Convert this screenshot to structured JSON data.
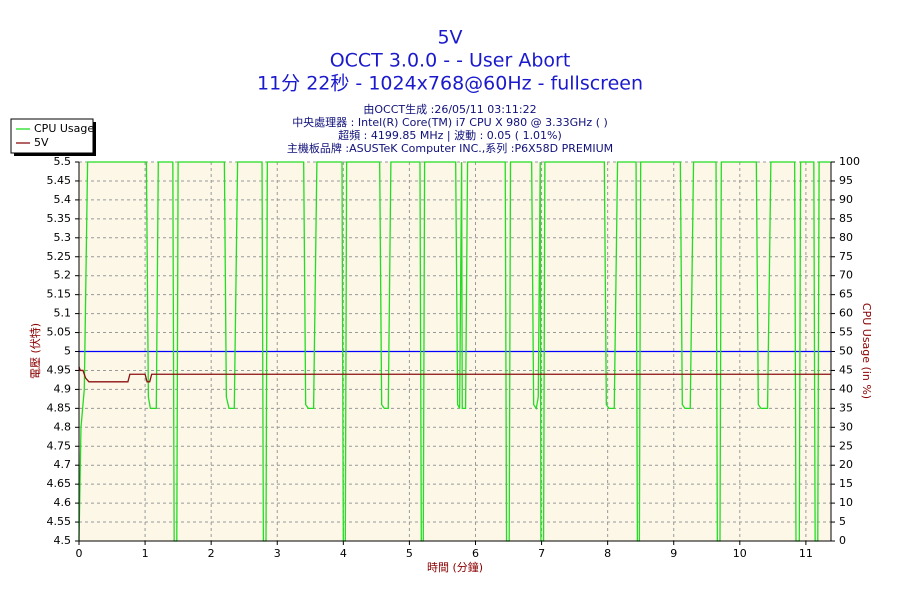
{
  "chart_data": {
    "type": "line",
    "title": "5V",
    "subtitle": [
      "OCCT 3.0.0 -  - User Abort",
      "11分 22秒 - 1024x768@60Hz - fullscreen"
    ],
    "info": [
      "由OCCT生成 :26/05/11 03:11:22",
      "中央處理器 : Intel(R) Core(TM) i7 CPU X 980 @ 3.33GHz (  )",
      "超頻 : 4199.85 MHz | 波動 : 0.05 ( 1.01%)",
      "主機板品牌 :ASUSTeK Computer INC.,系列 :P6X58D PREMIUM"
    ],
    "xlabel": "時間 (分鐘)",
    "ylabel": "電壓 (伏特)",
    "y2label": "CPU Usage (in %)",
    "xlim": [
      0,
      11.38
    ],
    "xticks": [
      0,
      1,
      2,
      3,
      4,
      5,
      6,
      7,
      8,
      9,
      10,
      11
    ],
    "ylim": [
      4.5,
      5.5
    ],
    "yticks": [
      4.5,
      4.55,
      4.6,
      4.65,
      4.7,
      4.75,
      4.8,
      4.85,
      4.9,
      4.95,
      5,
      5.05,
      5.1,
      5.15,
      5.2,
      5.25,
      5.3,
      5.35,
      5.4,
      5.45,
      5.5
    ],
    "y2lim": [
      0,
      100
    ],
    "y2ticks": [
      0,
      5,
      10,
      15,
      20,
      25,
      30,
      35,
      40,
      45,
      50,
      55,
      60,
      65,
      70,
      75,
      80,
      85,
      90,
      95,
      100
    ],
    "grid": true,
    "legend": "top-left",
    "reference_line": {
      "value": 5,
      "color": "#0000ff"
    },
    "series": [
      {
        "name": "CPU Usage",
        "color": "#22dd22",
        "axis": "y2",
        "x": [
          0,
          0.03,
          0.08,
          0.13,
          1.02,
          1.05,
          1.08,
          1.17,
          1.2,
          1.42,
          1.44,
          1.48,
          1.5,
          2.2,
          2.23,
          2.27,
          2.35,
          2.4,
          2.77,
          2.79,
          2.83,
          2.85,
          3.4,
          3.43,
          3.47,
          3.55,
          3.6,
          3.98,
          4.0,
          4.03,
          4.05,
          4.55,
          4.58,
          4.62,
          4.68,
          4.72,
          5.16,
          5.18,
          5.21,
          5.23,
          5.7,
          5.73,
          5.76,
          5.79,
          5.8,
          5.85,
          5.88,
          6.45,
          6.47,
          6.51,
          6.53,
          6.85,
          6.88,
          6.92,
          6.95,
          6.98,
          6.99,
          7.03,
          7.05,
          7.95,
          7.98,
          8.02,
          8.1,
          8.15,
          8.43,
          8.45,
          8.48,
          8.5,
          9.1,
          9.13,
          9.17,
          9.25,
          9.3,
          9.64,
          9.66,
          9.7,
          9.72,
          10.25,
          10.28,
          10.32,
          10.42,
          10.47,
          10.83,
          10.85,
          10.9,
          10.92,
          11.12,
          11.14,
          11.18,
          11.2,
          11.38
        ],
        "values": [
          0,
          30,
          40,
          100,
          100,
          38,
          35,
          35,
          100,
          100,
          0,
          0,
          100,
          100,
          38,
          35,
          35,
          100,
          100,
          0,
          0,
          100,
          100,
          36,
          35,
          35,
          100,
          100,
          0,
          0,
          100,
          100,
          36,
          35,
          35,
          100,
          100,
          0,
          0,
          100,
          100,
          36,
          35,
          100,
          35,
          35,
          100,
          100,
          0,
          0,
          100,
          100,
          36,
          35,
          38,
          100,
          0,
          0,
          100,
          100,
          36,
          35,
          35,
          100,
          100,
          0,
          0,
          100,
          100,
          36,
          35,
          35,
          100,
          100,
          0,
          0,
          100,
          100,
          36,
          35,
          35,
          100,
          100,
          0,
          0,
          100,
          100,
          0,
          0,
          100,
          100
        ]
      },
      {
        "name": "5V",
        "color": "#8b1010",
        "x": [
          0,
          0.02,
          0.06,
          0.1,
          0.15,
          0.74,
          0.77,
          1.0,
          1.03,
          1.07,
          1.1,
          11.38
        ],
        "values": [
          4.96,
          4.95,
          4.95,
          4.93,
          4.92,
          4.92,
          4.94,
          4.94,
          4.92,
          4.92,
          4.94,
          4.94
        ]
      }
    ]
  }
}
